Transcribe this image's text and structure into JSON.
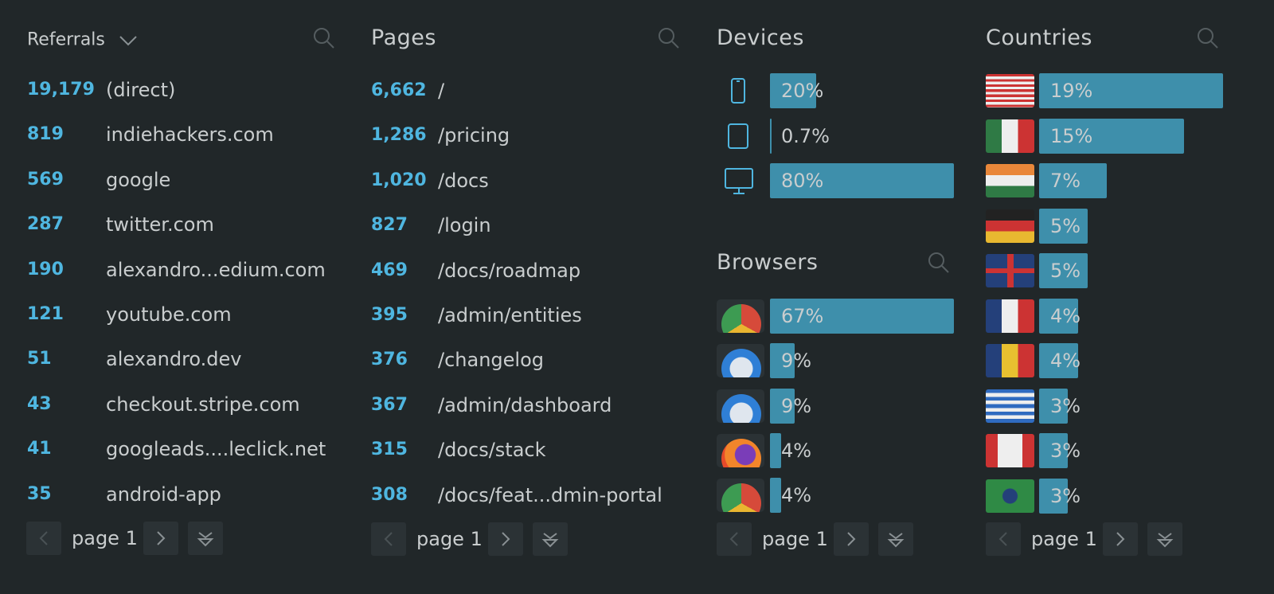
{
  "referrals": {
    "title": "Referrals",
    "rows": [
      {
        "count": "19,179",
        "source": "(direct)"
      },
      {
        "count": "819",
        "source": "indiehackers.com"
      },
      {
        "count": "569",
        "source": "google"
      },
      {
        "count": "287",
        "source": "twitter.com"
      },
      {
        "count": "190",
        "source": "alexandro...edium.com"
      },
      {
        "count": "121",
        "source": "youtube.com"
      },
      {
        "count": "51",
        "source": "alexandro.dev"
      },
      {
        "count": "43",
        "source": "checkout.stripe.com"
      },
      {
        "count": "41",
        "source": "googleads....leclick.net"
      },
      {
        "count": "35",
        "source": "android-app"
      }
    ],
    "page": "page 1"
  },
  "pages": {
    "title": "Pages",
    "rows": [
      {
        "count": "6,662",
        "path": "/"
      },
      {
        "count": "1,286",
        "path": "/pricing"
      },
      {
        "count": "1,020",
        "path": "/docs"
      },
      {
        "count": "827",
        "path": "/login"
      },
      {
        "count": "469",
        "path": "/docs/roadmap"
      },
      {
        "count": "395",
        "path": "/admin/entities"
      },
      {
        "count": "376",
        "path": "/changelog"
      },
      {
        "count": "367",
        "path": "/admin/dashboard"
      },
      {
        "count": "315",
        "path": "/docs/stack"
      },
      {
        "count": "308",
        "path": "/docs/feat...dmin-portal"
      }
    ],
    "page": "page 1"
  },
  "devices": {
    "title": "Devices",
    "rows": [
      {
        "value": 20,
        "label": "20%"
      },
      {
        "value": 0.7,
        "label": "0.7%"
      },
      {
        "value": 80,
        "label": "80%"
      }
    ]
  },
  "browsers": {
    "title": "Browsers",
    "rows": [
      {
        "value": 67,
        "label": "67%"
      },
      {
        "value": 9,
        "label": "9%"
      },
      {
        "value": 9,
        "label": "9%"
      },
      {
        "value": 4,
        "label": "4%"
      },
      {
        "value": 4,
        "label": "4%"
      }
    ],
    "page": "page 1"
  },
  "countries": {
    "title": "Countries",
    "rows": [
      {
        "value": 19,
        "label": "19%"
      },
      {
        "value": 15,
        "label": "15%"
      },
      {
        "value": 7,
        "label": "7%"
      },
      {
        "value": 5,
        "label": "5%"
      },
      {
        "value": 5,
        "label": "5%"
      },
      {
        "value": 4,
        "label": "4%"
      },
      {
        "value": 4,
        "label": "4%"
      },
      {
        "value": 3,
        "label": "3%"
      },
      {
        "value": 3,
        "label": "3%"
      },
      {
        "value": 3,
        "label": "3%"
      }
    ],
    "page": "page 1"
  }
}
